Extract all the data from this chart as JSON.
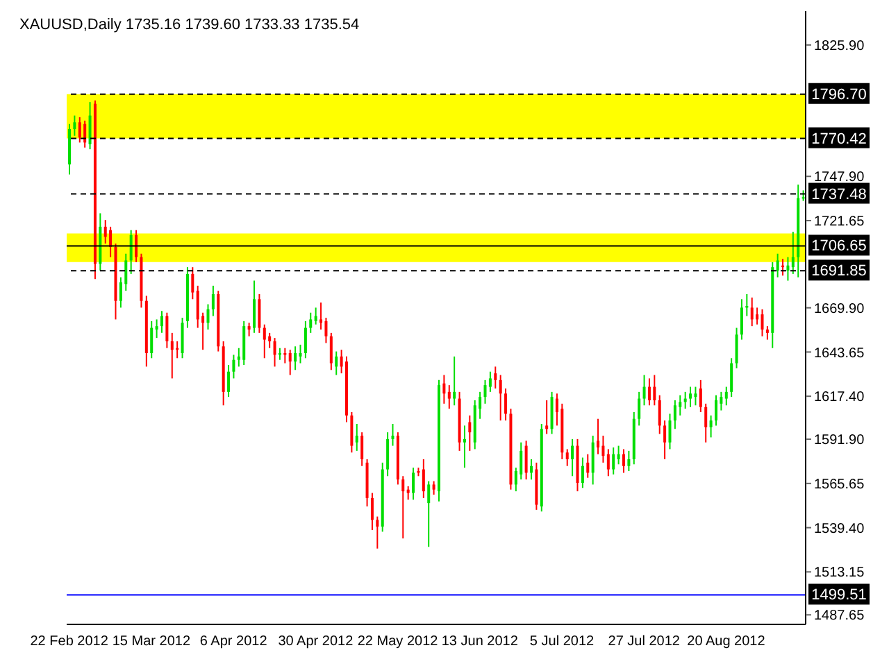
{
  "chart_data": {
    "type": "candlestick",
    "title": "XAUUSD,Daily  1735.16 1739.60 1733.33 1735.54",
    "categories": [
      "22 Feb 2012",
      null,
      null,
      null,
      null,
      null,
      null,
      null,
      null,
      null,
      null,
      null,
      null,
      null,
      null,
      null,
      "15 Mar 2012",
      null,
      null,
      null,
      null,
      null,
      null,
      null,
      null,
      null,
      null,
      null,
      null,
      null,
      null,
      null,
      "6 Apr 2012",
      null,
      null,
      null,
      null,
      null,
      null,
      null,
      null,
      null,
      null,
      null,
      null,
      null,
      null,
      null,
      "30 Apr 2012",
      null,
      null,
      null,
      null,
      null,
      null,
      null,
      null,
      null,
      null,
      null,
      null,
      null,
      null,
      null,
      "22 May 2012",
      null,
      null,
      null,
      null,
      null,
      null,
      null,
      null,
      null,
      null,
      null,
      null,
      null,
      null,
      null,
      "13 Jun 2012",
      null,
      null,
      null,
      null,
      null,
      null,
      null,
      null,
      null,
      null,
      null,
      null,
      null,
      null,
      null,
      "5 Jul 2012",
      null,
      null,
      null,
      null,
      null,
      null,
      null,
      null,
      null,
      null,
      null,
      null,
      null,
      null,
      null,
      "27 Jul 2012",
      null,
      null,
      null,
      null,
      null,
      null,
      null,
      null,
      null,
      null,
      null,
      null,
      null,
      null,
      null,
      "20 Aug 2012",
      null,
      null,
      null,
      null,
      null,
      null,
      null,
      null,
      null,
      null,
      null,
      null,
      null,
      null,
      null
    ],
    "ohlc": [
      [
        1755,
        1779,
        1749,
        1776
      ],
      [
        1776,
        1784,
        1772,
        1780
      ],
      [
        1780,
        1783,
        1768,
        1771
      ],
      [
        1779,
        1781,
        1765,
        1768
      ],
      [
        1767,
        1792,
        1764,
        1784
      ],
      [
        1791,
        1793,
        1687,
        1696
      ],
      [
        1696,
        1726,
        1692,
        1718
      ],
      [
        1718,
        1722,
        1708,
        1712
      ],
      [
        1716,
        1718,
        1700,
        1706
      ],
      [
        1706,
        1708,
        1663,
        1674
      ],
      [
        1674,
        1688,
        1670,
        1685
      ],
      [
        1684,
        1702,
        1680,
        1698
      ],
      [
        1698,
        1716,
        1690,
        1713
      ],
      [
        1713,
        1716,
        1697,
        1700
      ],
      [
        1700,
        1702,
        1670,
        1674
      ],
      [
        1674,
        1677,
        1635,
        1643
      ],
      [
        1643,
        1662,
        1640,
        1658
      ],
      [
        1657,
        1663,
        1652,
        1659
      ],
      [
        1659,
        1668,
        1655,
        1665
      ],
      [
        1665,
        1667,
        1646,
        1650
      ],
      [
        1650,
        1655,
        1628,
        1645
      ],
      [
        1646,
        1650,
        1640,
        1645
      ],
      [
        1643,
        1664,
        1640,
        1661
      ],
      [
        1662,
        1694,
        1658,
        1690
      ],
      [
        1690,
        1694,
        1675,
        1679
      ],
      [
        1680,
        1683,
        1658,
        1663
      ],
      [
        1665,
        1667,
        1645,
        1661
      ],
      [
        1661,
        1672,
        1657,
        1669
      ],
      [
        1669,
        1683,
        1665,
        1678
      ],
      [
        1678,
        1680,
        1644,
        1647
      ],
      [
        1647,
        1650,
        1612,
        1620
      ],
      [
        1620,
        1636,
        1617,
        1632
      ],
      [
        1632,
        1642,
        1628,
        1639
      ],
      [
        1639,
        1646,
        1635,
        1641
      ],
      [
        1639,
        1662,
        1636,
        1659
      ],
      [
        1659,
        1661,
        1653,
        1657
      ],
      [
        1658,
        1686,
        1655,
        1675
      ],
      [
        1675,
        1678,
        1655,
        1658
      ],
      [
        1658,
        1660,
        1640,
        1651
      ],
      [
        1653,
        1655,
        1646,
        1650
      ],
      [
        1650,
        1652,
        1635,
        1642
      ],
      [
        1642,
        1646,
        1639,
        1643
      ],
      [
        1643,
        1646,
        1637,
        1642
      ],
      [
        1643,
        1645,
        1630,
        1638
      ],
      [
        1638,
        1647,
        1633,
        1643
      ],
      [
        1641,
        1648,
        1637,
        1643
      ],
      [
        1643,
        1662,
        1640,
        1658
      ],
      [
        1658,
        1667,
        1655,
        1663
      ],
      [
        1662,
        1670,
        1660,
        1665
      ],
      [
        1663,
        1673,
        1657,
        1661
      ],
      [
        1662,
        1664,
        1649,
        1653
      ],
      [
        1653,
        1655,
        1633,
        1637
      ],
      [
        1635,
        1644,
        1630,
        1641
      ],
      [
        1641,
        1645,
        1631,
        1635
      ],
      [
        1638,
        1641,
        1602,
        1606
      ],
      [
        1606,
        1608,
        1584,
        1588
      ],
      [
        1590,
        1601,
        1585,
        1594
      ],
      [
        1594,
        1596,
        1576,
        1580
      ],
      [
        1578,
        1580,
        1552,
        1557
      ],
      [
        1557,
        1560,
        1538,
        1544
      ],
      [
        1544,
        1546,
        1527,
        1540
      ],
      [
        1540,
        1578,
        1537,
        1574
      ],
      [
        1574,
        1596,
        1570,
        1592
      ],
      [
        1592,
        1601,
        1588,
        1594
      ],
      [
        1594,
        1596,
        1565,
        1568
      ],
      [
        1568,
        1570,
        1533,
        1561
      ],
      [
        1562,
        1564,
        1556,
        1560
      ],
      [
        1560,
        1575,
        1556,
        1572
      ],
      [
        1573,
        1575,
        1570,
        1572
      ],
      [
        1574,
        1580,
        1557,
        1561
      ],
      [
        1554,
        1567,
        1528,
        1565
      ],
      [
        1565,
        1567,
        1559,
        1562
      ],
      [
        1561,
        1627,
        1555,
        1624
      ],
      [
        1625,
        1630,
        1613,
        1619
      ],
      [
        1620,
        1624,
        1610,
        1616
      ],
      [
        1616,
        1641,
        1612,
        1620
      ],
      [
        1616,
        1620,
        1585,
        1590
      ],
      [
        1590,
        1600,
        1575,
        1592
      ],
      [
        1602,
        1606,
        1585,
        1596
      ],
      [
        1590,
        1615,
        1586,
        1612
      ],
      [
        1610,
        1620,
        1604,
        1617
      ],
      [
        1617,
        1627,
        1613,
        1624
      ],
      [
        1623,
        1632,
        1620,
        1628
      ],
      [
        1631,
        1635,
        1622,
        1627
      ],
      [
        1627,
        1630,
        1603,
        1619
      ],
      [
        1619,
        1622,
        1603,
        1607
      ],
      [
        1607,
        1610,
        1562,
        1565
      ],
      [
        1565,
        1575,
        1561,
        1573
      ],
      [
        1571,
        1590,
        1568,
        1585
      ],
      [
        1588,
        1591,
        1568,
        1572
      ],
      [
        1572,
        1580,
        1568,
        1576
      ],
      [
        1574,
        1578,
        1550,
        1553
      ],
      [
        1552,
        1601,
        1549,
        1598
      ],
      [
        1600,
        1615,
        1595,
        1598
      ],
      [
        1598,
        1620,
        1595,
        1617
      ],
      [
        1616,
        1619,
        1600,
        1608
      ],
      [
        1610,
        1613,
        1580,
        1584
      ],
      [
        1584,
        1586,
        1576,
        1580
      ],
      [
        1580,
        1592,
        1570,
        1588
      ],
      [
        1588,
        1592,
        1561,
        1566
      ],
      [
        1566,
        1581,
        1563,
        1576
      ],
      [
        1578,
        1583,
        1569,
        1572
      ],
      [
        1572,
        1594,
        1565,
        1590
      ],
      [
        1591,
        1604,
        1583,
        1587
      ],
      [
        1588,
        1594,
        1578,
        1582
      ],
      [
        1583,
        1586,
        1570,
        1574
      ],
      [
        1574,
        1587,
        1571,
        1583
      ],
      [
        1580,
        1588,
        1577,
        1583
      ],
      [
        1583,
        1586,
        1572,
        1576
      ],
      [
        1576,
        1585,
        1573,
        1580
      ],
      [
        1580,
        1608,
        1577,
        1604
      ],
      [
        1604,
        1620,
        1600,
        1616
      ],
      [
        1616,
        1630,
        1612,
        1623
      ],
      [
        1623,
        1628,
        1612,
        1615
      ],
      [
        1623,
        1630,
        1612,
        1615
      ],
      [
        1615,
        1618,
        1595,
        1600
      ],
      [
        1600,
        1603,
        1580,
        1590
      ],
      [
        1590,
        1607,
        1586,
        1603
      ],
      [
        1603,
        1615,
        1598,
        1612
      ],
      [
        1611,
        1618,
        1606,
        1614
      ],
      [
        1614,
        1620,
        1610,
        1616
      ],
      [
        1616,
        1623,
        1611,
        1619
      ],
      [
        1617,
        1623,
        1612,
        1619
      ],
      [
        1622,
        1627,
        1608,
        1611
      ],
      [
        1611,
        1613,
        1590,
        1599
      ],
      [
        1599,
        1606,
        1593,
        1603
      ],
      [
        1603,
        1618,
        1600,
        1615
      ],
      [
        1613,
        1620,
        1609,
        1617
      ],
      [
        1616,
        1623,
        1612,
        1620
      ],
      [
        1620,
        1640,
        1617,
        1637
      ],
      [
        1637,
        1658,
        1634,
        1654
      ],
      [
        1654,
        1675,
        1651,
        1670
      ],
      [
        1670,
        1678,
        1665,
        1671
      ],
      [
        1670,
        1676,
        1659,
        1663
      ],
      [
        1666,
        1670,
        1660,
        1663
      ],
      [
        1666,
        1669,
        1653,
        1657
      ],
      [
        1657,
        1659,
        1651,
        1655
      ],
      [
        1655,
        1697,
        1646,
        1694
      ],
      [
        1692,
        1702,
        1688,
        1698
      ],
      [
        1695,
        1699,
        1689,
        1694
      ],
      [
        1692,
        1700,
        1686,
        1695
      ],
      [
        1694,
        1715,
        1690,
        1700
      ],
      [
        1700,
        1743,
        1688,
        1735
      ],
      [
        1735.16,
        1739.6,
        1733.33,
        1735.54
      ]
    ],
    "ylim": [
      1482,
      1846
    ],
    "yticks": [
      1487.65,
      1513.15,
      {
        "value": 1539.4,
        "label": "1539.40"
      },
      1565.65,
      {
        "value": 1591.9,
        "label": "1591.90"
      },
      {
        "value": 1617.4,
        "label": "1617.40"
      },
      1643.65,
      {
        "value": 1669.9,
        "label": "1669.90"
      },
      1721.65,
      {
        "value": 1747.9,
        "label": "1747.90"
      },
      {
        "value": 1825.9,
        "label": "1825.90"
      }
    ],
    "ref_lines": [
      {
        "axis": "y",
        "value": 1796.7,
        "label": "1796.70",
        "line_style": "dashed",
        "color": "#000000"
      },
      {
        "axis": "y",
        "value": 1770.42,
        "label": "1770.42",
        "line_style": "dashed",
        "color": "#000000"
      },
      {
        "axis": "y",
        "value": 1737.48,
        "label": "1737.48",
        "line_style": "dashed",
        "color": "#000000"
      },
      {
        "axis": "y",
        "value": 1706.65,
        "label": "1706.65",
        "line_style": "solid",
        "color": "#000000"
      },
      {
        "axis": "y",
        "value": 1691.85,
        "label": "1691.85",
        "line_style": "dashed",
        "color": "#000000"
      },
      {
        "axis": "y",
        "value": 1499.51,
        "label": "1499.51",
        "line_style": "solid",
        "color": "#0000ff"
      }
    ],
    "bands": [
      {
        "axis": "y",
        "from": 1770.42,
        "to": 1796.7,
        "color": "#ffff00"
      },
      {
        "axis": "y",
        "from": 1697,
        "to": 1714,
        "color": "#ffff00"
      }
    ],
    "grid": false
  }
}
